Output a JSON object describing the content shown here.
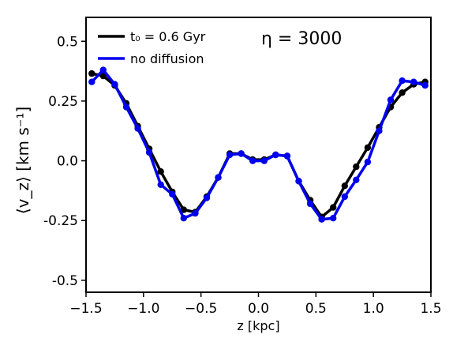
{
  "chart_data": {
    "type": "line",
    "xlabel": "z [kpc]",
    "ylabel": "⟨v_z⟩ [km s⁻¹]",
    "xlim": [
      -1.5,
      1.5
    ],
    "ylim": [
      -0.55,
      0.6
    ],
    "xticks": [
      -1.5,
      -1.0,
      -0.5,
      0.0,
      0.5,
      1.0,
      1.5
    ],
    "xtick_labels": [
      "−1.5",
      "−1.0",
      "−0.5",
      "0.0",
      "0.5",
      "1.0",
      "1.5"
    ],
    "yticks": [
      0.5,
      0.25,
      0.0,
      -0.25,
      -0.5
    ],
    "ytick_labels": [
      "0.5",
      "0.25",
      "0.0",
      "-0.25",
      "-0.5"
    ],
    "annotation": "η = 3000",
    "legend_position": "top-left",
    "grid": false,
    "series": [
      {
        "name": "t₀ = 0.6 Gyr",
        "color": "#000000",
        "x": [
          -1.45,
          -1.35,
          -1.25,
          -1.15,
          -1.05,
          -0.95,
          -0.85,
          -0.75,
          -0.65,
          -0.55,
          -0.45,
          -0.35,
          -0.25,
          -0.15,
          -0.05,
          0.05,
          0.15,
          0.25,
          0.35,
          0.45,
          0.55,
          0.65,
          0.75,
          0.85,
          0.95,
          1.05,
          1.15,
          1.25,
          1.35,
          1.45
        ],
        "values": [
          0.365,
          0.355,
          0.315,
          0.24,
          0.145,
          0.05,
          -0.045,
          -0.13,
          -0.205,
          -0.215,
          -0.15,
          -0.07,
          0.03,
          0.03,
          0.005,
          0.005,
          0.025,
          0.02,
          -0.085,
          -0.165,
          -0.235,
          -0.195,
          -0.105,
          -0.025,
          0.055,
          0.14,
          0.225,
          0.285,
          0.32,
          0.33
        ]
      },
      {
        "name": "no diffusion",
        "color": "#0000ee",
        "x": [
          -1.45,
          -1.35,
          -1.25,
          -1.15,
          -1.05,
          -0.95,
          -0.85,
          -0.75,
          -0.65,
          -0.55,
          -0.45,
          -0.35,
          -0.25,
          -0.15,
          -0.05,
          0.05,
          0.15,
          0.25,
          0.35,
          0.45,
          0.55,
          0.65,
          0.75,
          0.85,
          0.95,
          1.05,
          1.15,
          1.25,
          1.35,
          1.45
        ],
        "values": [
          0.33,
          0.38,
          0.32,
          0.225,
          0.135,
          0.035,
          -0.1,
          -0.14,
          -0.24,
          -0.22,
          -0.155,
          -0.07,
          0.025,
          0.03,
          0.0,
          0.0,
          0.025,
          0.02,
          -0.085,
          -0.18,
          -0.245,
          -0.24,
          -0.15,
          -0.08,
          -0.005,
          0.125,
          0.255,
          0.335,
          0.33,
          0.315
        ]
      }
    ]
  }
}
